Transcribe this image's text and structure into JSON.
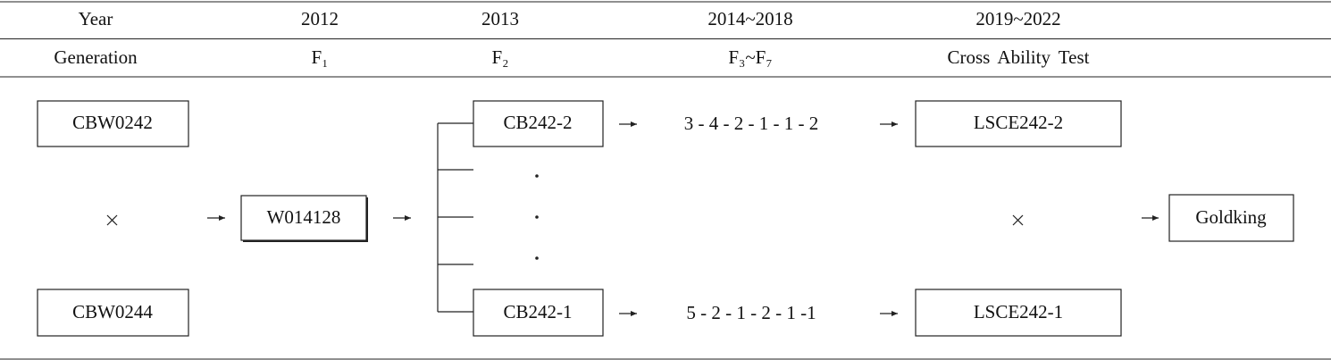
{
  "header": {
    "rows": [
      [
        "Year",
        "2012",
        "2013",
        "2014~2018",
        "2019~2022"
      ],
      [
        "Generation",
        "F₁",
        "F₂",
        "F₃~F₇",
        "Cross Ability Test"
      ]
    ]
  },
  "nodes": {
    "parents": [
      "CBW0242",
      "CBW0244"
    ],
    "f1": "W014128",
    "lines": [
      {
        "f2": "CB242-2",
        "sequence": "3 - 4 - 2 - 1 - 1 - 2",
        "test": "LSCE242-2"
      },
      {
        "f2": "CB242-1",
        "sequence": "5 - 2 - 1 - 2 - 1 -1",
        "test": "LSCE242-1"
      }
    ],
    "variety": "Goldking"
  }
}
